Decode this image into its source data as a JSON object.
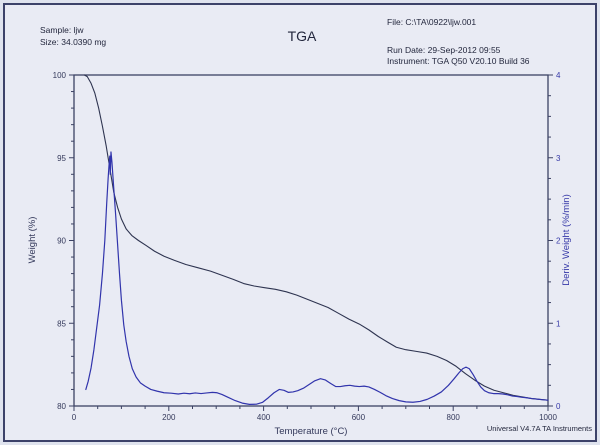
{
  "window": {
    "bg": "#e9ebf4",
    "frame_color": "#3c4269"
  },
  "header": {
    "sample_label": "Sample: ljw",
    "size_label": "Size:  34.0390 mg",
    "title": "TGA",
    "file_label": "File: C:\\TA\\0922\\ljw.001",
    "run_date_label": "Run Date: 29-Sep-2012 09:55",
    "instrument_label": "Instrument: TGA Q50 V20.10 Build 36"
  },
  "footer": {
    "credit": "Universal V4.7A TA Instruments"
  },
  "chart_data": {
    "type": "line",
    "title": "TGA",
    "xlabel": "Temperature (°C)",
    "ylabel_left": "Weight (%)",
    "ylabel_right": "Deriv. Weight (%/min)",
    "x_range": [
      0,
      1000
    ],
    "x_major_ticks": [
      0,
      200,
      400,
      600,
      800,
      1000
    ],
    "x_minor_step": 50,
    "y_left_range": [
      80,
      100
    ],
    "y_left_major_ticks": [
      80,
      85,
      90,
      95,
      100
    ],
    "y_left_minor_step": 1,
    "y_right_range": [
      0,
      4
    ],
    "y_right_major_ticks": [
      0,
      1,
      2,
      3,
      4
    ],
    "y_right_minor_step": 0.25,
    "grid": false,
    "legend": "none",
    "axis_color": "#3c4264",
    "left_text_color": "#34395b",
    "bottom_text_color": "#34395b",
    "right_text_color": "#3639a8",
    "series": [
      {
        "name": "Weight",
        "axis": "left",
        "color": "#2e3450",
        "width": 1.1,
        "points": [
          [
            22,
            100.0
          ],
          [
            28,
            99.9
          ],
          [
            36,
            99.5
          ],
          [
            44,
            98.9
          ],
          [
            52,
            98.0
          ],
          [
            60,
            96.9
          ],
          [
            68,
            95.7
          ],
          [
            76,
            94.3
          ],
          [
            84,
            92.9
          ],
          [
            92,
            92.0
          ],
          [
            100,
            91.3
          ],
          [
            110,
            90.7
          ],
          [
            122,
            90.3
          ],
          [
            136,
            90.0
          ],
          [
            152,
            89.7
          ],
          [
            170,
            89.35
          ],
          [
            190,
            89.05
          ],
          [
            212,
            88.8
          ],
          [
            236,
            88.55
          ],
          [
            262,
            88.35
          ],
          [
            288,
            88.15
          ],
          [
            312,
            87.9
          ],
          [
            336,
            87.65
          ],
          [
            358,
            87.4
          ],
          [
            380,
            87.25
          ],
          [
            402,
            87.15
          ],
          [
            425,
            87.05
          ],
          [
            448,
            86.9
          ],
          [
            470,
            86.7
          ],
          [
            492,
            86.45
          ],
          [
            514,
            86.2
          ],
          [
            536,
            85.95
          ],
          [
            558,
            85.6
          ],
          [
            580,
            85.25
          ],
          [
            602,
            84.95
          ],
          [
            622,
            84.6
          ],
          [
            642,
            84.2
          ],
          [
            662,
            83.85
          ],
          [
            680,
            83.55
          ],
          [
            700,
            83.4
          ],
          [
            722,
            83.3
          ],
          [
            744,
            83.2
          ],
          [
            766,
            83.0
          ],
          [
            786,
            82.75
          ],
          [
            806,
            82.4
          ],
          [
            826,
            81.95
          ],
          [
            846,
            81.55
          ],
          [
            866,
            81.2
          ],
          [
            886,
            80.95
          ],
          [
            906,
            80.8
          ],
          [
            926,
            80.65
          ],
          [
            946,
            80.55
          ],
          [
            966,
            80.45
          ],
          [
            1000,
            80.35
          ]
        ]
      },
      {
        "name": "Deriv. Weight",
        "axis": "right",
        "color": "#3134ac",
        "width": 1.2,
        "points": [
          [
            25,
            0.2
          ],
          [
            30,
            0.3
          ],
          [
            36,
            0.46
          ],
          [
            42,
            0.68
          ],
          [
            48,
            0.95
          ],
          [
            54,
            1.22
          ],
          [
            60,
            1.6
          ],
          [
            65,
            2.0
          ],
          [
            69,
            2.45
          ],
          [
            72,
            2.75
          ],
          [
            74,
            2.92
          ],
          [
            75.5,
            3.02
          ],
          [
            76.5,
            2.8
          ],
          [
            78,
            3.07
          ],
          [
            80,
            2.95
          ],
          [
            84,
            2.62
          ],
          [
            88,
            2.3
          ],
          [
            92,
            1.95
          ],
          [
            96,
            1.6
          ],
          [
            100,
            1.28
          ],
          [
            105,
            0.98
          ],
          [
            110,
            0.78
          ],
          [
            116,
            0.6
          ],
          [
            123,
            0.45
          ],
          [
            131,
            0.35
          ],
          [
            140,
            0.28
          ],
          [
            150,
            0.24
          ],
          [
            162,
            0.2
          ],
          [
            175,
            0.18
          ],
          [
            190,
            0.16
          ],
          [
            205,
            0.155
          ],
          [
            220,
            0.145
          ],
          [
            232,
            0.155
          ],
          [
            244,
            0.148
          ],
          [
            256,
            0.158
          ],
          [
            268,
            0.15
          ],
          [
            280,
            0.158
          ],
          [
            292,
            0.165
          ],
          [
            302,
            0.16
          ],
          [
            312,
            0.14
          ],
          [
            325,
            0.105
          ],
          [
            340,
            0.065
          ],
          [
            355,
            0.035
          ],
          [
            370,
            0.02
          ],
          [
            385,
            0.022
          ],
          [
            398,
            0.045
          ],
          [
            410,
            0.1
          ],
          [
            422,
            0.16
          ],
          [
            433,
            0.2
          ],
          [
            443,
            0.19
          ],
          [
            452,
            0.165
          ],
          [
            462,
            0.17
          ],
          [
            472,
            0.185
          ],
          [
            484,
            0.215
          ],
          [
            496,
            0.26
          ],
          [
            508,
            0.305
          ],
          [
            520,
            0.33
          ],
          [
            530,
            0.315
          ],
          [
            542,
            0.27
          ],
          [
            552,
            0.235
          ],
          [
            562,
            0.235
          ],
          [
            572,
            0.245
          ],
          [
            582,
            0.25
          ],
          [
            592,
            0.24
          ],
          [
            602,
            0.235
          ],
          [
            612,
            0.24
          ],
          [
            622,
            0.23
          ],
          [
            634,
            0.2
          ],
          [
            646,
            0.165
          ],
          [
            658,
            0.125
          ],
          [
            672,
            0.09
          ],
          [
            686,
            0.065
          ],
          [
            700,
            0.05
          ],
          [
            715,
            0.045
          ],
          [
            730,
            0.055
          ],
          [
            745,
            0.08
          ],
          [
            760,
            0.12
          ],
          [
            775,
            0.17
          ],
          [
            790,
            0.25
          ],
          [
            802,
            0.33
          ],
          [
            812,
            0.4
          ],
          [
            820,
            0.45
          ],
          [
            827,
            0.47
          ],
          [
            834,
            0.45
          ],
          [
            842,
            0.38
          ],
          [
            850,
            0.3
          ],
          [
            858,
            0.23
          ],
          [
            866,
            0.185
          ],
          [
            875,
            0.16
          ],
          [
            885,
            0.15
          ],
          [
            895,
            0.15
          ],
          [
            905,
            0.145
          ],
          [
            915,
            0.135
          ],
          [
            925,
            0.12
          ],
          [
            935,
            0.115
          ],
          [
            945,
            0.105
          ],
          [
            955,
            0.1
          ],
          [
            965,
            0.09
          ],
          [
            975,
            0.085
          ],
          [
            985,
            0.078
          ],
          [
            1000,
            0.07
          ]
        ]
      }
    ]
  }
}
